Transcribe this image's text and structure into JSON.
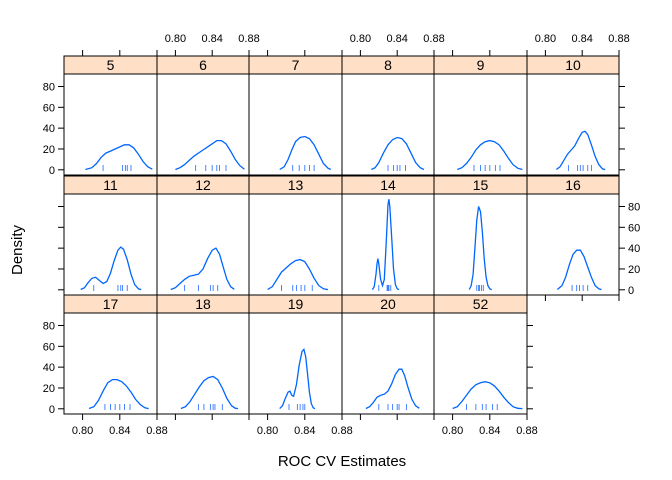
{
  "chart_data": {
    "type": "density-lattice",
    "xlabel": "ROC CV Estimates",
    "ylabel": "Density",
    "xlim": [
      0.78,
      0.88
    ],
    "ylim": [
      -5,
      92
    ],
    "x_ticks": [
      0.8,
      0.84,
      0.88
    ],
    "x_tick_labels": [
      "0.80",
      "0.84",
      "0.88"
    ],
    "y_ticks": [
      0,
      20,
      40,
      60,
      80
    ],
    "y_tick_labels": [
      "0",
      "20",
      "40",
      "60",
      "80"
    ],
    "layout": {
      "columns": 6,
      "rows": 3
    },
    "colors": {
      "curve": "#0066ff",
      "rug": "#3377ff",
      "strip": "#ffe0c7",
      "frame": "#000000"
    },
    "panels": [
      {
        "label": "5",
        "row": 0,
        "col": 0,
        "rug": [
          0.822,
          0.843,
          0.846,
          0.848,
          0.852
        ],
        "curve": [
          [
            0.803,
            0.3
          ],
          [
            0.81,
            2
          ],
          [
            0.815,
            6
          ],
          [
            0.82,
            12
          ],
          [
            0.825,
            16
          ],
          [
            0.83,
            18
          ],
          [
            0.835,
            20
          ],
          [
            0.84,
            22
          ],
          [
            0.845,
            24
          ],
          [
            0.85,
            24
          ],
          [
            0.855,
            21
          ],
          [
            0.86,
            15
          ],
          [
            0.865,
            8
          ],
          [
            0.87,
            3
          ],
          [
            0.875,
            0.6
          ]
        ]
      },
      {
        "label": "6",
        "row": 0,
        "col": 1,
        "rug": [
          0.822,
          0.833,
          0.84,
          0.845,
          0.848,
          0.855
        ],
        "curve": [
          [
            0.8,
            0.3
          ],
          [
            0.805,
            2
          ],
          [
            0.81,
            5
          ],
          [
            0.815,
            9
          ],
          [
            0.82,
            13
          ],
          [
            0.825,
            16
          ],
          [
            0.83,
            19
          ],
          [
            0.835,
            22
          ],
          [
            0.84,
            25
          ],
          [
            0.845,
            28
          ],
          [
            0.85,
            28
          ],
          [
            0.855,
            25
          ],
          [
            0.86,
            18
          ],
          [
            0.865,
            10
          ],
          [
            0.87,
            4
          ],
          [
            0.875,
            0.6
          ]
        ]
      },
      {
        "label": "7",
        "row": 0,
        "col": 2,
        "rug": [
          0.827,
          0.834,
          0.84,
          0.845,
          0.85
        ],
        "curve": [
          [
            0.813,
            0.3
          ],
          [
            0.818,
            3
          ],
          [
            0.822,
            10
          ],
          [
            0.826,
            19
          ],
          [
            0.83,
            27
          ],
          [
            0.835,
            31
          ],
          [
            0.84,
            32
          ],
          [
            0.845,
            30
          ],
          [
            0.85,
            24
          ],
          [
            0.855,
            15
          ],
          [
            0.86,
            6
          ],
          [
            0.865,
            1.5
          ],
          [
            0.868,
            0.3
          ]
        ]
      },
      {
        "label": "8",
        "row": 0,
        "col": 3,
        "rug": [
          0.83,
          0.836,
          0.84,
          0.843,
          0.849
        ],
        "curve": [
          [
            0.812,
            0.3
          ],
          [
            0.816,
            2
          ],
          [
            0.82,
            7
          ],
          [
            0.825,
            16
          ],
          [
            0.83,
            24
          ],
          [
            0.835,
            29
          ],
          [
            0.84,
            31
          ],
          [
            0.845,
            30
          ],
          [
            0.85,
            25
          ],
          [
            0.855,
            16
          ],
          [
            0.86,
            7
          ],
          [
            0.865,
            2
          ],
          [
            0.869,
            0.3
          ]
        ]
      },
      {
        "label": "9",
        "row": 0,
        "col": 4,
        "rug": [
          0.823,
          0.83,
          0.835,
          0.84,
          0.846,
          0.851
        ],
        "curve": [
          [
            0.805,
            0.3
          ],
          [
            0.81,
            2
          ],
          [
            0.815,
            6
          ],
          [
            0.82,
            12
          ],
          [
            0.825,
            19
          ],
          [
            0.83,
            24
          ],
          [
            0.835,
            27
          ],
          [
            0.84,
            28
          ],
          [
            0.845,
            27
          ],
          [
            0.85,
            24
          ],
          [
            0.855,
            18
          ],
          [
            0.86,
            11
          ],
          [
            0.865,
            5
          ],
          [
            0.87,
            1.5
          ],
          [
            0.875,
            0.3
          ]
        ]
      },
      {
        "label": "10",
        "row": 0,
        "col": 5,
        "rug": [
          0.825,
          0.835,
          0.838,
          0.841,
          0.846,
          0.85
        ],
        "curve": [
          [
            0.812,
            0.3
          ],
          [
            0.816,
            3
          ],
          [
            0.82,
            9
          ],
          [
            0.824,
            15
          ],
          [
            0.828,
            19
          ],
          [
            0.832,
            23
          ],
          [
            0.836,
            30
          ],
          [
            0.84,
            36
          ],
          [
            0.843,
            37
          ],
          [
            0.846,
            34
          ],
          [
            0.85,
            24
          ],
          [
            0.854,
            13
          ],
          [
            0.858,
            5
          ],
          [
            0.862,
            1
          ],
          [
            0.865,
            0.2
          ]
        ]
      },
      {
        "label": "11",
        "row": 1,
        "col": 0,
        "rug": [
          0.812,
          0.838,
          0.841,
          0.843,
          0.848
        ],
        "curve": [
          [
            0.798,
            0.3
          ],
          [
            0.802,
            2
          ],
          [
            0.806,
            7
          ],
          [
            0.81,
            11
          ],
          [
            0.814,
            12
          ],
          [
            0.818,
            9
          ],
          [
            0.822,
            6
          ],
          [
            0.826,
            8
          ],
          [
            0.83,
            16
          ],
          [
            0.834,
            28
          ],
          [
            0.838,
            38
          ],
          [
            0.841,
            41
          ],
          [
            0.844,
            39
          ],
          [
            0.848,
            29
          ],
          [
            0.852,
            15
          ],
          [
            0.856,
            5
          ],
          [
            0.86,
            1
          ],
          [
            0.863,
            0.2
          ]
        ]
      },
      {
        "label": "12",
        "row": 1,
        "col": 1,
        "rug": [
          0.81,
          0.825,
          0.838,
          0.841,
          0.846
        ],
        "curve": [
          [
            0.795,
            0.3
          ],
          [
            0.8,
            2
          ],
          [
            0.805,
            6
          ],
          [
            0.81,
            10
          ],
          [
            0.815,
            13
          ],
          [
            0.82,
            14
          ],
          [
            0.825,
            15
          ],
          [
            0.83,
            20
          ],
          [
            0.835,
            30
          ],
          [
            0.84,
            38
          ],
          [
            0.844,
            40
          ],
          [
            0.848,
            34
          ],
          [
            0.852,
            22
          ],
          [
            0.856,
            10
          ],
          [
            0.86,
            3
          ],
          [
            0.864,
            0.5
          ]
        ]
      },
      {
        "label": "13",
        "row": 1,
        "col": 2,
        "rug": [
          0.815,
          0.827,
          0.831,
          0.836,
          0.84,
          0.848
        ],
        "curve": [
          [
            0.8,
            0.3
          ],
          [
            0.805,
            3
          ],
          [
            0.81,
            10
          ],
          [
            0.815,
            17
          ],
          [
            0.82,
            21
          ],
          [
            0.825,
            25
          ],
          [
            0.83,
            28
          ],
          [
            0.835,
            29
          ],
          [
            0.84,
            27
          ],
          [
            0.845,
            20
          ],
          [
            0.85,
            11
          ],
          [
            0.855,
            4
          ],
          [
            0.86,
            1
          ],
          [
            0.865,
            0.2
          ]
        ]
      },
      {
        "label": "14",
        "row": 1,
        "col": 3,
        "rug": [
          0.82,
          0.829,
          0.83,
          0.831,
          0.833
        ],
        "curve": [
          [
            0.813,
            0.2
          ],
          [
            0.815,
            3
          ],
          [
            0.817,
            15
          ],
          [
            0.818,
            25
          ],
          [
            0.819,
            30
          ],
          [
            0.82,
            25
          ],
          [
            0.822,
            10
          ],
          [
            0.824,
            4
          ],
          [
            0.826,
            10
          ],
          [
            0.828,
            45
          ],
          [
            0.83,
            82
          ],
          [
            0.831,
            87
          ],
          [
            0.832,
            80
          ],
          [
            0.834,
            50
          ],
          [
            0.836,
            20
          ],
          [
            0.838,
            5
          ],
          [
            0.84,
            1
          ],
          [
            0.842,
            0.2
          ]
        ]
      },
      {
        "label": "15",
        "row": 1,
        "col": 4,
        "rug": [
          0.826,
          0.828,
          0.829,
          0.831,
          0.833
        ],
        "curve": [
          [
            0.818,
            0.3
          ],
          [
            0.82,
            4
          ],
          [
            0.822,
            15
          ],
          [
            0.824,
            40
          ],
          [
            0.826,
            67
          ],
          [
            0.828,
            80
          ],
          [
            0.83,
            75
          ],
          [
            0.832,
            55
          ],
          [
            0.834,
            30
          ],
          [
            0.836,
            12
          ],
          [
            0.838,
            4
          ],
          [
            0.84,
            1
          ],
          [
            0.842,
            0.2
          ]
        ]
      },
      {
        "label": "16",
        "row": 1,
        "col": 5,
        "rug": [
          0.829,
          0.834,
          0.837,
          0.841,
          0.846
        ],
        "curve": [
          [
            0.813,
            0.3
          ],
          [
            0.818,
            4
          ],
          [
            0.822,
            12
          ],
          [
            0.826,
            24
          ],
          [
            0.83,
            34
          ],
          [
            0.834,
            38
          ],
          [
            0.838,
            38
          ],
          [
            0.842,
            32
          ],
          [
            0.846,
            22
          ],
          [
            0.85,
            12
          ],
          [
            0.854,
            4
          ],
          [
            0.858,
            1
          ],
          [
            0.861,
            0.2
          ]
        ]
      },
      {
        "label": "17",
        "row": 2,
        "col": 0,
        "rug": [
          0.824,
          0.83,
          0.835,
          0.84,
          0.845,
          0.851
        ],
        "curve": [
          [
            0.807,
            0.3
          ],
          [
            0.812,
            2
          ],
          [
            0.817,
            8
          ],
          [
            0.822,
            17
          ],
          [
            0.827,
            25
          ],
          [
            0.832,
            28
          ],
          [
            0.837,
            28
          ],
          [
            0.842,
            26
          ],
          [
            0.847,
            22
          ],
          [
            0.852,
            16
          ],
          [
            0.857,
            9
          ],
          [
            0.862,
            4
          ],
          [
            0.867,
            1
          ],
          [
            0.871,
            0.2
          ]
        ]
      },
      {
        "label": "18",
        "row": 2,
        "col": 1,
        "rug": [
          0.825,
          0.831,
          0.838,
          0.841,
          0.843,
          0.851
        ],
        "curve": [
          [
            0.806,
            0.3
          ],
          [
            0.811,
            2
          ],
          [
            0.816,
            7
          ],
          [
            0.821,
            14
          ],
          [
            0.826,
            21
          ],
          [
            0.831,
            27
          ],
          [
            0.836,
            30
          ],
          [
            0.841,
            31
          ],
          [
            0.846,
            28
          ],
          [
            0.851,
            20
          ],
          [
            0.856,
            10
          ],
          [
            0.861,
            3
          ],
          [
            0.865,
            0.6
          ],
          [
            0.868,
            0.2
          ]
        ]
      },
      {
        "label": "19",
        "row": 2,
        "col": 2,
        "rug": [
          0.823,
          0.832,
          0.835,
          0.838,
          0.84
        ],
        "curve": [
          [
            0.813,
            0.2
          ],
          [
            0.816,
            3
          ],
          [
            0.819,
            10
          ],
          [
            0.822,
            16
          ],
          [
            0.824,
            17
          ],
          [
            0.826,
            13
          ],
          [
            0.828,
            12
          ],
          [
            0.831,
            23
          ],
          [
            0.834,
            42
          ],
          [
            0.837,
            55
          ],
          [
            0.839,
            57
          ],
          [
            0.841,
            50
          ],
          [
            0.843,
            33
          ],
          [
            0.845,
            16
          ],
          [
            0.847,
            5
          ],
          [
            0.849,
            1
          ],
          [
            0.851,
            0.2
          ]
        ]
      },
      {
        "label": "20",
        "row": 2,
        "col": 3,
        "rug": [
          0.82,
          0.83,
          0.835,
          0.84,
          0.842,
          0.85
        ],
        "curve": [
          [
            0.806,
            0.3
          ],
          [
            0.81,
            2
          ],
          [
            0.814,
            6
          ],
          [
            0.818,
            11
          ],
          [
            0.822,
            13
          ],
          [
            0.826,
            14
          ],
          [
            0.83,
            17
          ],
          [
            0.834,
            24
          ],
          [
            0.838,
            33
          ],
          [
            0.842,
            38
          ],
          [
            0.845,
            38
          ],
          [
            0.848,
            32
          ],
          [
            0.852,
            20
          ],
          [
            0.856,
            9
          ],
          [
            0.86,
            3
          ],
          [
            0.864,
            0.5
          ]
        ]
      },
      {
        "label": "52",
        "row": 2,
        "col": 4,
        "rug": [
          0.815,
          0.825,
          0.832,
          0.836,
          0.843,
          0.848
        ],
        "curve": [
          [
            0.8,
            0.3
          ],
          [
            0.805,
            2
          ],
          [
            0.81,
            7
          ],
          [
            0.815,
            13
          ],
          [
            0.82,
            19
          ],
          [
            0.825,
            23
          ],
          [
            0.83,
            25
          ],
          [
            0.835,
            26
          ],
          [
            0.84,
            25
          ],
          [
            0.845,
            22
          ],
          [
            0.85,
            17
          ],
          [
            0.855,
            11
          ],
          [
            0.86,
            6
          ],
          [
            0.865,
            2
          ],
          [
            0.87,
            0.5
          ],
          [
            0.875,
            0.2
          ]
        ]
      }
    ]
  }
}
